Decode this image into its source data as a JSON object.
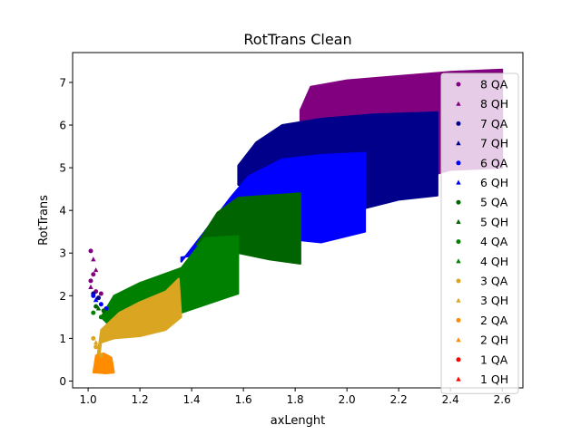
{
  "chart_data": {
    "type": "scatter",
    "title": "RotTrans Clean",
    "xlabel": "axLenght",
    "ylabel": "RotTrans",
    "xlim": [
      0.94,
      2.68
    ],
    "ylim": [
      -0.16,
      7.7
    ],
    "x_ticks": [
      1.0,
      1.2,
      1.4,
      1.6,
      1.8,
      2.0,
      2.2,
      2.4,
      2.6
    ],
    "x_tick_labels": [
      "1.0",
      "1.2",
      "1.4",
      "1.6",
      "1.8",
      "2.0",
      "2.2",
      "2.4",
      "2.6"
    ],
    "y_ticks": [
      0,
      1,
      2,
      3,
      4,
      5,
      6,
      7
    ],
    "y_tick_labels": [
      "0",
      "1",
      "2",
      "3",
      "4",
      "5",
      "6",
      "7"
    ],
    "grid": false,
    "legend_position": "right",
    "series": [
      {
        "name": "8 QA",
        "marker": "circle",
        "color": "#800080",
        "points": [
          [
            1.01,
            3.05
          ],
          [
            1.01,
            2.35
          ],
          [
            1.02,
            2.5
          ],
          [
            1.03,
            2.1
          ],
          [
            1.05,
            2.05
          ]
        ]
      },
      {
        "name": "8 QH",
        "marker": "triangle",
        "color": "#800080",
        "points": [
          [
            1.02,
            2.85
          ],
          [
            1.03,
            2.6
          ],
          [
            1.01,
            2.2
          ]
        ],
        "region": [
          [
            1.82,
            6.35
          ],
          [
            1.86,
            6.9
          ],
          [
            2.0,
            7.05
          ],
          [
            2.2,
            7.15
          ],
          [
            2.4,
            7.25
          ],
          [
            2.6,
            7.3
          ],
          [
            2.6,
            5.0
          ],
          [
            2.4,
            4.95
          ],
          [
            2.2,
            4.6
          ],
          [
            2.0,
            4.4
          ],
          [
            1.82,
            4.9
          ]
        ]
      },
      {
        "name": "7 QA",
        "marker": "circle",
        "color": "#00008b",
        "points": [
          [
            1.02,
            2.05
          ],
          [
            1.04,
            1.95
          ]
        ]
      },
      {
        "name": "7 QH",
        "marker": "triangle",
        "color": "#00008b",
        "points": [
          [
            1.03,
            1.9
          ]
        ],
        "region": [
          [
            1.58,
            5.05
          ],
          [
            1.65,
            5.6
          ],
          [
            1.75,
            6.0
          ],
          [
            1.9,
            6.15
          ],
          [
            2.1,
            6.25
          ],
          [
            2.35,
            6.3
          ],
          [
            2.35,
            4.35
          ],
          [
            2.2,
            4.25
          ],
          [
            2.07,
            4.05
          ],
          [
            1.82,
            4.1
          ],
          [
            1.58,
            4.6
          ]
        ]
      },
      {
        "name": "6 QA",
        "marker": "circle",
        "color": "#0000ff",
        "points": [
          [
            1.02,
            2.0
          ],
          [
            1.05,
            1.8
          ],
          [
            1.07,
            1.7
          ]
        ]
      },
      {
        "name": "6 QH",
        "marker": "triangle",
        "color": "#0000ff",
        "points": [
          [
            1.03,
            1.9
          ]
        ],
        "region": [
          [
            1.36,
            2.8
          ],
          [
            1.45,
            3.5
          ],
          [
            1.55,
            4.3
          ],
          [
            1.62,
            4.8
          ],
          [
            1.75,
            5.2
          ],
          [
            1.9,
            5.3
          ],
          [
            2.07,
            5.35
          ],
          [
            2.07,
            3.5
          ],
          [
            1.9,
            3.25
          ],
          [
            1.82,
            3.3
          ],
          [
            1.36,
            2.9
          ]
        ]
      },
      {
        "name": "5 QA",
        "marker": "circle",
        "color": "#006400",
        "points": [
          [
            1.03,
            1.75
          ],
          [
            1.06,
            1.65
          ]
        ]
      },
      {
        "name": "5 QH",
        "marker": "triangle",
        "color": "#006400",
        "points": [
          [
            1.04,
            1.7
          ]
        ],
        "region": [
          [
            1.42,
            3.2
          ],
          [
            1.5,
            3.95
          ],
          [
            1.58,
            4.3
          ],
          [
            1.82,
            4.4
          ],
          [
            1.82,
            2.75
          ],
          [
            1.7,
            2.85
          ],
          [
            1.58,
            3.0
          ],
          [
            1.45,
            3.1
          ]
        ]
      },
      {
        "name": "4 QA",
        "marker": "circle",
        "color": "#008000",
        "points": [
          [
            1.02,
            1.6
          ],
          [
            1.05,
            1.5
          ],
          [
            1.08,
            1.5
          ]
        ]
      },
      {
        "name": "4 QH",
        "marker": "triangle",
        "color": "#008000",
        "points": [
          [
            1.1,
            1.9
          ]
        ],
        "region": [
          [
            1.05,
            1.5
          ],
          [
            1.1,
            2.0
          ],
          [
            1.2,
            2.3
          ],
          [
            1.36,
            2.65
          ],
          [
            1.45,
            3.35
          ],
          [
            1.58,
            3.4
          ],
          [
            1.58,
            2.05
          ],
          [
            1.36,
            1.6
          ],
          [
            1.2,
            1.3
          ],
          [
            1.1,
            1.2
          ]
        ]
      },
      {
        "name": "3 QA",
        "marker": "circle",
        "color": "#daa520",
        "points": [
          [
            1.02,
            1.0
          ],
          [
            1.03,
            0.8
          ],
          [
            1.05,
            0.6
          ]
        ]
      },
      {
        "name": "3 QH",
        "marker": "triangle",
        "color": "#daa520",
        "points": [
          [
            1.03,
            0.9
          ]
        ],
        "region": [
          [
            1.03,
            0.35
          ],
          [
            1.05,
            1.2
          ],
          [
            1.12,
            1.6
          ],
          [
            1.2,
            1.85
          ],
          [
            1.3,
            2.1
          ],
          [
            1.35,
            2.4
          ],
          [
            1.36,
            1.5
          ],
          [
            1.3,
            1.2
          ],
          [
            1.2,
            1.05
          ],
          [
            1.1,
            1.0
          ],
          [
            1.05,
            0.9
          ],
          [
            1.04,
            0.4
          ]
        ]
      },
      {
        "name": "2 QA",
        "marker": "circle",
        "color": "#ff8c00",
        "points": [
          [
            1.04,
            0.3
          ],
          [
            1.06,
            0.25
          ],
          [
            1.08,
            0.3
          ]
        ]
      },
      {
        "name": "2 QH",
        "marker": "triangle",
        "color": "#ff8c00",
        "points": [
          [
            1.05,
            0.4
          ]
        ],
        "region": [
          [
            1.02,
            0.2
          ],
          [
            1.03,
            0.6
          ],
          [
            1.06,
            0.65
          ],
          [
            1.09,
            0.55
          ],
          [
            1.1,
            0.2
          ],
          [
            1.07,
            0.18
          ],
          [
            1.03,
            0.2
          ]
        ]
      },
      {
        "name": "1 QA",
        "marker": "circle",
        "color": "#ff0000",
        "points": []
      },
      {
        "name": "1 QH",
        "marker": "triangle",
        "color": "#ff0000",
        "points": []
      }
    ]
  }
}
